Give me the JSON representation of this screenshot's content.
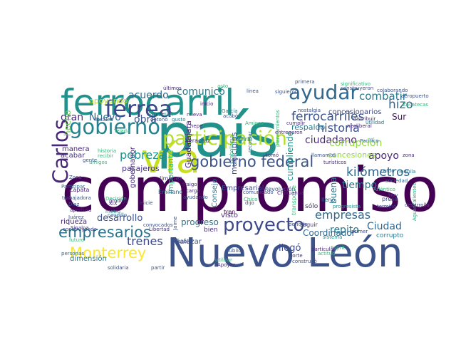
{
  "words": [
    {
      "text": "compromiso",
      "color": "#440154"
    },
    {
      "text": "país",
      "color": "#21918c"
    },
    {
      "text": "Nuevo León",
      "color": "#3b528b"
    },
    {
      "text": "ferrocarril",
      "color": "#21918c"
    },
    {
      "text": "vía",
      "color": "#c8e020"
    },
    {
      "text": "participación",
      "color": "#b5de2b"
    },
    {
      "text": "ayudar",
      "color": "#31688e"
    },
    {
      "text": "gobierno",
      "color": "#26828e"
    },
    {
      "text": "férrea",
      "color": "#3e4989"
    },
    {
      "text": "Carlos",
      "color": "#482878"
    },
    {
      "text": "empresarios",
      "color": "#2c728e"
    },
    {
      "text": "Monterrey",
      "color": "#fde725"
    },
    {
      "text": "proyecto",
      "color": "#3e4989"
    },
    {
      "text": "gobierno federal",
      "color": "#3b528b"
    },
    {
      "text": "ferrocarriles",
      "color": "#3b528b"
    },
    {
      "text": "historia",
      "color": "#3b528b"
    },
    {
      "text": "combatir",
      "color": "#2a788e"
    },
    {
      "text": "acuerdo",
      "color": "#31688e"
    },
    {
      "text": "comunicó",
      "color": "#2a788e"
    },
    {
      "text": "hizo",
      "color": "#31688e"
    },
    {
      "text": "Sur",
      "color": "#471063"
    },
    {
      "text": "gran",
      "color": "#472d7b"
    },
    {
      "text": "Nuevo",
      "color": "#31688e"
    },
    {
      "text": "obra",
      "color": "#3b528b"
    },
    {
      "text": "pobreza",
      "color": "#21918c"
    },
    {
      "text": "trenes",
      "color": "#3e4989"
    },
    {
      "text": "empresas",
      "color": "#31688e"
    },
    {
      "text": "kilómetros",
      "color": "#31688e"
    },
    {
      "text": "apoyo",
      "color": "#482878"
    },
    {
      "text": "ciudadano",
      "color": "#482878"
    },
    {
      "text": "corrupción",
      "color": "#90d743"
    },
    {
      "text": "tiempo",
      "color": "#2a788e"
    },
    {
      "text": "llegó",
      "color": "#3e4989"
    },
    {
      "text": "Ciudad",
      "color": "#31688e"
    },
    {
      "text": "repito",
      "color": "#2a788e"
    },
    {
      "text": "desarrollo",
      "color": "#3b528b"
    },
    {
      "text": "riqueza",
      "color": "#482878"
    },
    {
      "text": "progreso",
      "color": "#2c728e"
    },
    {
      "text": "Coordinador",
      "color": "#31688e"
    },
    {
      "text": "dimensión",
      "color": "#2a788e"
    },
    {
      "text": "pasajeros",
      "color": "#46327e"
    },
    {
      "text": "importante",
      "color": "#35b779"
    },
    {
      "text": "Guadalajara",
      "color": "#482878"
    },
    {
      "text": "cumpliendo",
      "color": "#21918c"
    },
    {
      "text": "buena",
      "color": "#2a788e"
    },
    {
      "text": "concesionarios",
      "color": "#3e4989"
    },
    {
      "text": "concesiones",
      "color": "#90d743"
    },
    {
      "text": "respaldo",
      "color": "#2a788e"
    },
    {
      "text": "municipios",
      "color": "#3b528b"
    },
    {
      "text": "hecho",
      "color": "#6ece58"
    },
    {
      "text": "manera",
      "color": "#482878"
    },
    {
      "text": "acabar",
      "color": "#46327e"
    },
    {
      "text": "apoyando",
      "color": "#b5de2b"
    },
    {
      "text": "Empresarial",
      "color": "#3e4989"
    },
    {
      "text": "Salazar",
      "color": "#3b528b"
    },
    {
      "text": "Consejo",
      "color": "#2c728e"
    },
    {
      "text": "visto",
      "color": "#482878"
    },
    {
      "text": "bien",
      "color": "#472d7b"
    },
    {
      "text": "gobernador",
      "color": "#472d7b"
    },
    {
      "text": "Jiménez",
      "color": "#443983"
    },
    {
      "text": "Emiliano",
      "color": "#31688e"
    },
    {
      "text": "Zapata",
      "color": "#482878"
    },
    {
      "text": "Revolución",
      "color": "#3b528b"
    },
    {
      "text": "Veracruz",
      "color": "#482878"
    },
    {
      "text": "Porfirio",
      "color": "#2a788e"
    },
    {
      "text": "tren",
      "color": "#440154"
    },
    {
      "text": "transporte",
      "color": "#35b779"
    },
    {
      "text": "sólo",
      "color": "#482878"
    },
    {
      "text": "seguir",
      "color": "#46327e"
    },
    {
      "text": "lleno",
      "color": "#31688e"
    },
    {
      "text": "progresista",
      "color": "#21918c"
    },
    {
      "text": "presa",
      "color": "#414487"
    },
    {
      "text": "terminó",
      "color": "#3e4989"
    },
    {
      "text": "Atlántico",
      "color": "#35b779"
    },
    {
      "text": "Aguascalientes",
      "color": "#22a884"
    },
    {
      "text": "corrupto",
      "color": "#2a788e"
    },
    {
      "text": "sistema",
      "color": "#21918c"
    },
    {
      "text": "primer",
      "color": "#3e4989"
    },
    {
      "text": "norte",
      "color": "#443983"
    },
    {
      "text": "construyó",
      "color": "#3b528b"
    },
    {
      "text": "público",
      "color": "#3b528b"
    },
    {
      "text": "solidaria",
      "color": "#3b528b"
    },
    {
      "text": "partir",
      "color": "#3b528b"
    },
    {
      "text": "Jaime",
      "color": "#3b528b"
    },
    {
      "text": "Libertad",
      "color": "#443983"
    },
    {
      "text": "metro",
      "color": "#21918c"
    },
    {
      "text": "Chico",
      "color": "#35b779"
    },
    {
      "text": "comunicado",
      "color": "#3b528b"
    },
    {
      "text": "Chihuahua",
      "color": "#482878"
    },
    {
      "text": "Juárez",
      "color": "#3b528b"
    },
    {
      "text": "Sinaloa",
      "color": "#46327e"
    },
    {
      "text": "apertura",
      "color": "#482878"
    },
    {
      "text": "trabajadora",
      "color": "#3b528b"
    },
    {
      "text": "Participar",
      "color": "#31688e"
    },
    {
      "text": "Díaz",
      "color": "#3b528b"
    },
    {
      "text": "caudillo",
      "color": "#31688e"
    },
    {
      "text": "Decisión",
      "color": "#35b779"
    },
    {
      "text": "XIX",
      "color": "#482878"
    },
    {
      "text": "Sebastián",
      "color": "#21918c"
    },
    {
      "text": "Lerdo",
      "color": "#31688e"
    },
    {
      "text": "Tequila",
      "color": "#2a788e"
    },
    {
      "text": "llamamos",
      "color": "#3b528b"
    },
    {
      "text": "turísticos",
      "color": "#482878"
    },
    {
      "text": "tomó",
      "color": "#46327e"
    },
    {
      "text": "simbolismo",
      "color": "#35b779"
    },
    {
      "text": "carga",
      "color": "#472d7b"
    },
    {
      "text": "dijo",
      "color": "#3b528b"
    },
    {
      "text": "Hoy",
      "color": "#3e4989"
    },
    {
      "text": "zona",
      "color": "#482878"
    },
    {
      "text": "desarrollo",
      "color": "#3b528b"
    },
    {
      "text": "sociedad",
      "color": "#31688e"
    },
    {
      "text": "distribuir",
      "color": "#46327e"
    },
    {
      "text": "neoliberal",
      "color": "#482878"
    },
    {
      "text": "utilidad",
      "color": "#2a788e"
    },
    {
      "text": "Pacífico",
      "color": "#31688e"
    },
    {
      "text": "colaborando",
      "color": "#3b528b"
    },
    {
      "text": "significativo",
      "color": "#35b779"
    },
    {
      "text": "construyeron",
      "color": "#3e4989"
    },
    {
      "text": "siguieron",
      "color": "#3b528b"
    },
    {
      "text": "cumplir",
      "color": "#482878"
    },
    {
      "text": "entregaron",
      "color": "#482878"
    },
    {
      "text": "nostalgia",
      "color": "#3b528b"
    },
    {
      "text": "Amigos",
      "color": "#35b779"
    },
    {
      "text": "primera",
      "color": "#3b528b"
    },
    {
      "text": "acto",
      "color": "#35b779"
    },
    {
      "text": "línea",
      "color": "#3b528b"
    },
    {
      "text": "últimos",
      "color": "#482878"
    },
    {
      "text": "García",
      "color": "#2a788e"
    },
    {
      "text": "acabó",
      "color": "#3b528b"
    },
    {
      "text": "inicio",
      "color": "#482878"
    },
    {
      "text": "nueva",
      "color": "#482878"
    },
    {
      "text": "Chepe",
      "color": "#482878"
    },
    {
      "text": "locales",
      "color": "#3b528b"
    },
    {
      "text": "unir",
      "color": "#482878"
    },
    {
      "text": "detonó",
      "color": "#3b528b"
    },
    {
      "text": "gusto",
      "color": "#2a788e"
    },
    {
      "text": "amigos",
      "color": "#35b779"
    },
    {
      "text": "Tejada",
      "color": "#35b779"
    },
    {
      "text": "traigo",
      "color": "#482878"
    },
    {
      "text": "ayudando",
      "color": "#3b528b"
    },
    {
      "text": "personas",
      "color": "#31688e"
    },
    {
      "text": "futuro",
      "color": "#35b779"
    },
    {
      "text": "construyendo",
      "color": "#3e4989"
    },
    {
      "text": "planeamientos",
      "color": "#35b779"
    },
    {
      "text": "recordar",
      "color": "#31688e"
    },
    {
      "text": "periodo",
      "color": "#3b528b"
    },
    {
      "text": "particular",
      "color": "#482878"
    },
    {
      "text": "actitud",
      "color": "#35b779"
    },
    {
      "text": "Esprit",
      "color": "#35b779"
    },
    {
      "text": "Zacatecas",
      "color": "#35b779"
    },
    {
      "text": "aeropuerto",
      "color": "#3b528b"
    },
    {
      "text": "utilizar",
      "color": "#35b779"
    },
    {
      "text": "Apoyar",
      "color": "#482878"
    },
    {
      "text": "hablo",
      "color": "#3b528b"
    },
    {
      "text": "convocados",
      "color": "#3b528b"
    },
    {
      "text": "prodigo",
      "color": "#482878"
    },
    {
      "text": "inicie",
      "color": "#3b528b"
    },
    {
      "text": "gente",
      "color": "#3b528b"
    },
    {
      "text": "recibir",
      "color": "#35b779"
    },
    {
      "text": "historia",
      "color": "#35b779"
    },
    {
      "text": "Zona",
      "color": "#3b528b"
    }
  ]
}
